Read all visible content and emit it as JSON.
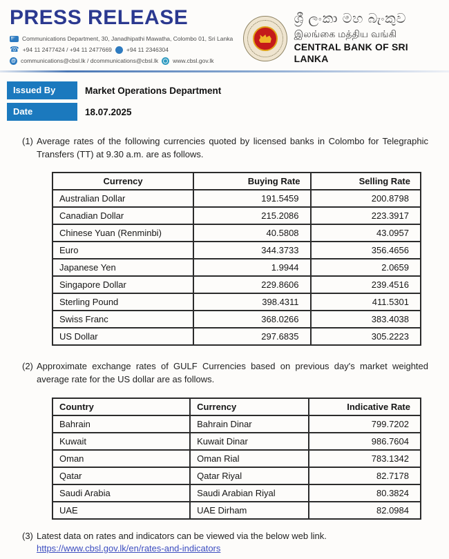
{
  "colors": {
    "title_navy": "#2b3990",
    "accent_blue": "#1b79be",
    "icon_blue": "#2e7bc0",
    "link_blue": "#3b4cc0",
    "seal_red": "#c41a1a",
    "seal_gold": "#e8a819"
  },
  "header": {
    "title": "PRESS RELEASE",
    "contact": {
      "address": "Communications Department, 30, Janadhipathi Mawatha, Colombo 01, Sri Lanka",
      "phones": "+94 11 2477424 / +94 11 2477669",
      "fax": "+94 11  2346304",
      "emails": "communications@cbsl.lk / dcommunications@cbsl.lk",
      "website": "www.cbsl.gov.lk"
    },
    "bank": {
      "name_sinhala": "ශ්‍රී ලංකා මහ බැංකුව",
      "name_tamil": "இலங்கை மத்திய வங்கி",
      "name_english": "CENTRAL BANK OF SRI LANKA"
    }
  },
  "icons": {
    "mail": "mail-icon",
    "phone": "☎",
    "fax": "fax-icon",
    "email_at": "@",
    "globe": "globe-icon"
  },
  "meta": {
    "issued_by_label": "Issued By",
    "issued_by_value": "Market Operations Department",
    "date_label": "Date",
    "date_value": "18.07.2025"
  },
  "section1": {
    "number": "(1)",
    "text": "Average rates of the following currencies quoted by licensed banks in Colombo for Telegraphic Transfers (TT) at 9.30 a.m. are as follows.",
    "columns": [
      "Currency",
      "Buying Rate",
      "Selling Rate"
    ],
    "rows": [
      [
        "Australian Dollar",
        "191.5459",
        "200.8798"
      ],
      [
        "Canadian Dollar",
        "215.2086",
        "223.3917"
      ],
      [
        "Chinese Yuan (Renminbi)",
        "40.5808",
        "43.0957"
      ],
      [
        "Euro",
        "344.3733",
        "356.4656"
      ],
      [
        "Japanese Yen",
        "1.9944",
        "2.0659"
      ],
      [
        "Singapore Dollar",
        "229.8606",
        "239.4516"
      ],
      [
        "Sterling Pound",
        "398.4311",
        "411.5301"
      ],
      [
        "Swiss Franc",
        "368.0266",
        "383.4038"
      ],
      [
        "US Dollar",
        "297.6835",
        "305.2223"
      ]
    ]
  },
  "section2": {
    "number": "(2)",
    "text": "Approximate exchange rates of GULF Currencies based on previous day's market weighted average rate for the US dollar are as follows.",
    "columns": [
      "Country",
      "Currency",
      "Indicative Rate"
    ],
    "rows": [
      [
        "Bahrain",
        "Bahrain Dinar",
        "799.7202"
      ],
      [
        "Kuwait",
        "Kuwait Dinar",
        "986.7604"
      ],
      [
        "Oman",
        "Oman Rial",
        "783.1342"
      ],
      [
        "Qatar",
        "Qatar Riyal",
        "82.7178"
      ],
      [
        "Saudi Arabia",
        "Saudi Arabian Riyal",
        "80.3824"
      ],
      [
        "UAE",
        "UAE Dirham",
        "82.0984"
      ]
    ]
  },
  "section3": {
    "number": "(3)",
    "text": "Latest data on rates and indicators can be viewed via the below web link.",
    "link": "https://www.cbsl.gov.lk/en/rates-and-indicators"
  }
}
